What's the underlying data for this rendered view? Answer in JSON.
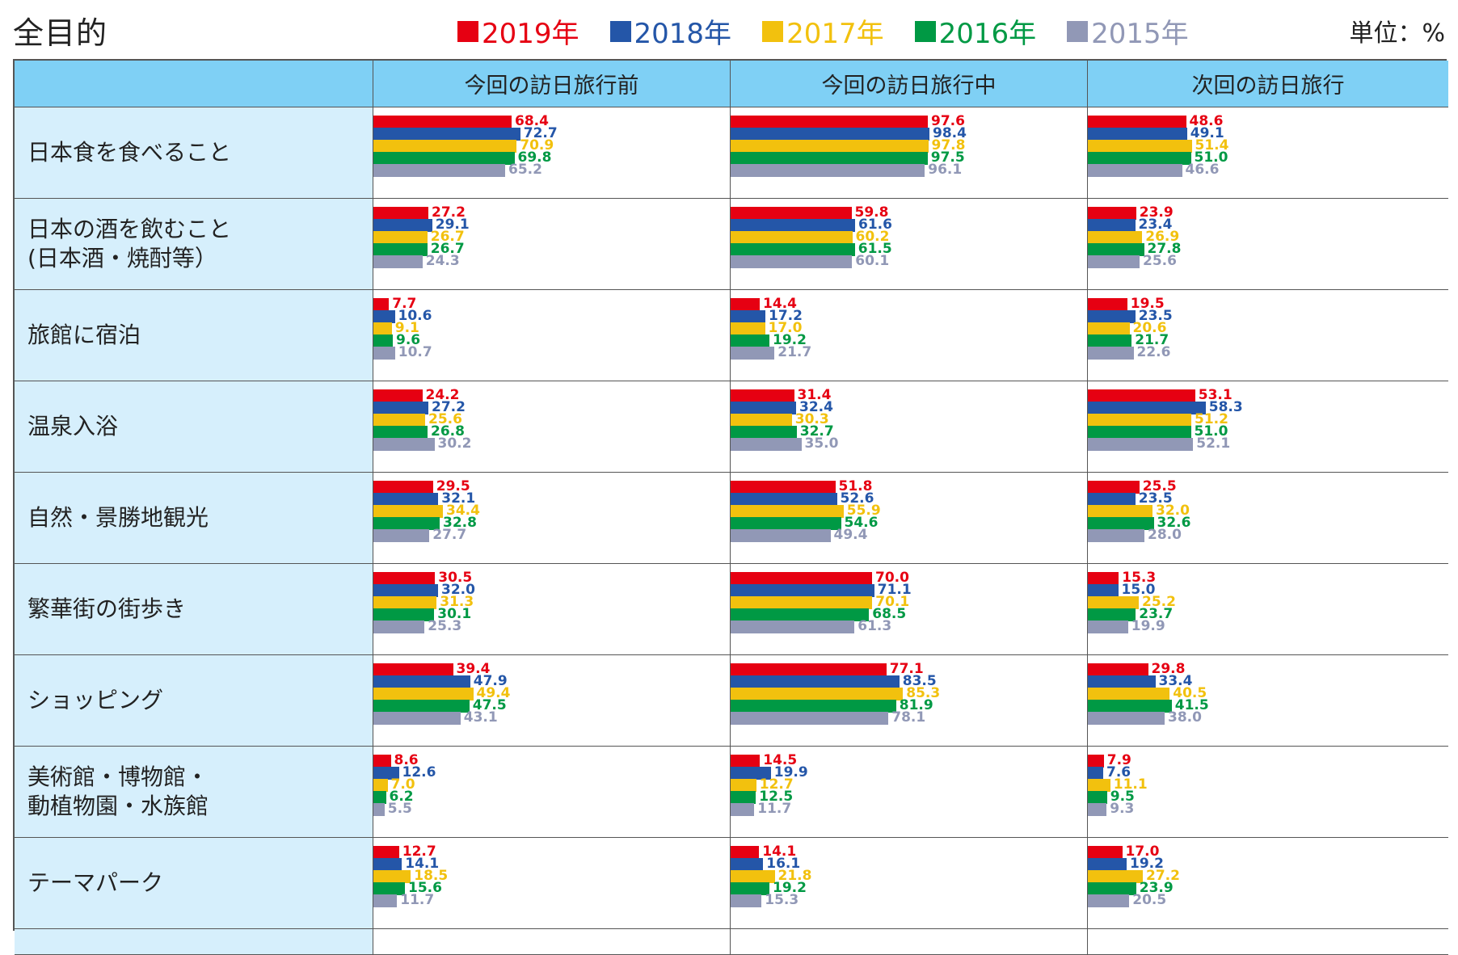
{
  "title": "全目的",
  "unit": "単位：%",
  "series": [
    {
      "name": "2019年",
      "color": "#e60012"
    },
    {
      "name": "2018年",
      "color": "#2456a8"
    },
    {
      "name": "2017年",
      "color": "#f2c10e"
    },
    {
      "name": "2016年",
      "color": "#009944"
    },
    {
      "name": "2015年",
      "color": "#9198b6"
    }
  ],
  "columns": [
    "今回の訪日旅行前",
    "今回の訪日旅行中",
    "次回の訪日旅行"
  ],
  "chart_data": {
    "type": "bar",
    "orientation": "horizontal",
    "title": "全目的",
    "unit": "単位：%",
    "series_names": [
      "2019年",
      "2018年",
      "2017年",
      "2016年",
      "2015年"
    ],
    "panels": [
      "今回の訪日旅行前",
      "今回の訪日旅行中",
      "次回の訪日旅行"
    ],
    "xlim": [
      0,
      100
    ],
    "categories": [
      "日本食を食べること",
      "日本の酒を飲むこと\n(日本酒・焼酎等）",
      "旅館に宿泊",
      "温泉入浴",
      "自然・景勝地観光",
      "繁華街の街歩き",
      "ショッピング",
      "美術館・博物館・\n動植物園・水族館",
      "テーマパーク"
    ],
    "values": [
      [
        [
          68.4,
          72.7,
          70.9,
          69.8,
          65.2
        ],
        [
          97.6,
          98.4,
          97.8,
          97.5,
          96.1
        ],
        [
          48.6,
          49.1,
          51.4,
          51.0,
          46.6
        ]
      ],
      [
        [
          27.2,
          29.1,
          26.7,
          26.7,
          24.3
        ],
        [
          59.8,
          61.6,
          60.2,
          61.5,
          60.1
        ],
        [
          23.9,
          23.4,
          26.9,
          27.8,
          25.6
        ]
      ],
      [
        [
          7.7,
          10.6,
          9.1,
          9.6,
          10.7
        ],
        [
          14.4,
          17.2,
          17.0,
          19.2,
          21.7
        ],
        [
          19.5,
          23.5,
          20.6,
          21.7,
          22.6
        ]
      ],
      [
        [
          24.2,
          27.2,
          25.6,
          26.8,
          30.2
        ],
        [
          31.4,
          32.4,
          30.3,
          32.7,
          35.0
        ],
        [
          53.1,
          58.3,
          51.2,
          51.0,
          52.1
        ]
      ],
      [
        [
          29.5,
          32.1,
          34.4,
          32.8,
          27.7
        ],
        [
          51.8,
          52.6,
          55.9,
          54.6,
          49.4
        ],
        [
          25.5,
          23.5,
          32.0,
          32.6,
          28.0
        ]
      ],
      [
        [
          30.5,
          32.0,
          31.3,
          30.1,
          25.3
        ],
        [
          70.0,
          71.1,
          70.1,
          68.5,
          61.3
        ],
        [
          15.3,
          15.0,
          25.2,
          23.7,
          19.9
        ]
      ],
      [
        [
          39.4,
          47.9,
          49.4,
          47.5,
          43.1
        ],
        [
          77.1,
          83.5,
          85.3,
          81.9,
          78.1
        ],
        [
          29.8,
          33.4,
          40.5,
          41.5,
          38.0
        ]
      ],
      [
        [
          8.6,
          12.6,
          7.0,
          6.2,
          5.5
        ],
        [
          14.5,
          19.9,
          12.7,
          12.5,
          11.7
        ],
        [
          7.9,
          7.6,
          11.1,
          9.5,
          9.3
        ]
      ],
      [
        [
          12.7,
          14.1,
          18.5,
          15.6,
          11.7
        ],
        [
          14.1,
          16.1,
          21.8,
          19.2,
          15.3
        ],
        [
          17.0,
          19.2,
          27.2,
          23.9,
          20.5
        ]
      ]
    ]
  }
}
